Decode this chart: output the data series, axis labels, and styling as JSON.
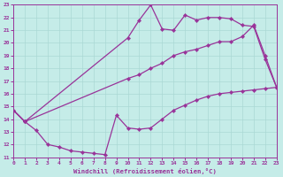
{
  "xlabel": "Windchill (Refroidissement éolien,°C)",
  "bg_color": "#c5ece8",
  "line_color": "#993399",
  "grid_color": "#aad8d4",
  "xlim": [
    0,
    23
  ],
  "ylim": [
    11,
    23
  ],
  "xticks": [
    0,
    1,
    2,
    3,
    4,
    5,
    6,
    7,
    8,
    9,
    10,
    11,
    12,
    13,
    14,
    15,
    16,
    17,
    18,
    19,
    20,
    21,
    22,
    23
  ],
  "yticks": [
    11,
    12,
    13,
    14,
    15,
    16,
    17,
    18,
    19,
    20,
    21,
    22,
    23
  ],
  "curve1_x": [
    0,
    1,
    10,
    11,
    12,
    13,
    14,
    15,
    16,
    17,
    18,
    19,
    20,
    21,
    22,
    23
  ],
  "curve1_y": [
    14.7,
    13.8,
    20.4,
    21.8,
    23.0,
    21.1,
    21.0,
    22.2,
    21.8,
    22.0,
    22.0,
    21.9,
    21.4,
    21.3,
    18.7,
    16.5
  ],
  "curve2_x": [
    0,
    1,
    10,
    11,
    12,
    13,
    14,
    15,
    16,
    17,
    18,
    19,
    20,
    21,
    22,
    23
  ],
  "curve2_y": [
    14.7,
    13.8,
    17.2,
    17.5,
    18.0,
    18.4,
    19.0,
    19.3,
    19.5,
    19.8,
    20.1,
    20.1,
    20.5,
    21.4,
    19.0,
    16.5
  ],
  "curve3_x": [
    0,
    1,
    2,
    3,
    4,
    5,
    6,
    7,
    8,
    9,
    10,
    11,
    12,
    13,
    14,
    15,
    16,
    17,
    18,
    19,
    20,
    21,
    22,
    23
  ],
  "curve3_y": [
    14.7,
    13.8,
    13.1,
    12.0,
    11.8,
    11.5,
    11.4,
    11.3,
    11.2,
    14.3,
    13.3,
    13.2,
    13.3,
    14.0,
    14.7,
    15.1,
    15.5,
    15.8,
    16.0,
    16.1,
    16.2,
    16.3,
    16.4,
    16.5
  ]
}
